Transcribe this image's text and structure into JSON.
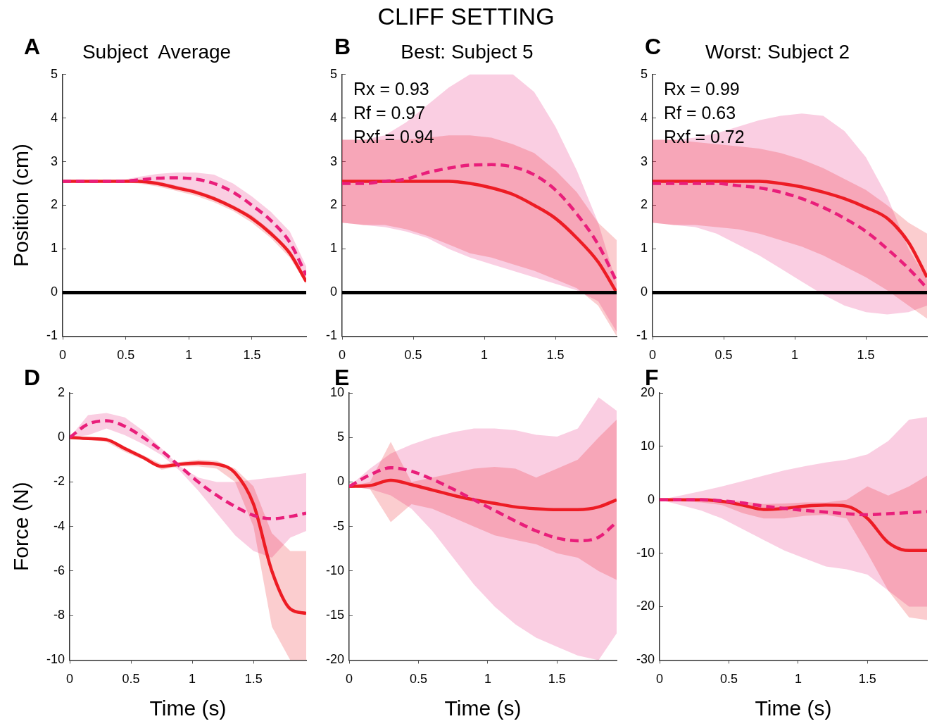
{
  "chart_data": [
    {
      "type": "line",
      "title": "Subject  Average",
      "ylabel": "Position (cm)",
      "annotations": [
        "A",
        "CLIFF SETTING"
      ],
      "marker": "none",
      "xlim": [
        0,
        1.93
      ],
      "xticks": [
        0,
        0.5,
        1,
        1.5
      ],
      "ylim": [
        -1,
        5
      ],
      "yticks": [
        -1,
        0,
        1,
        2,
        3,
        4,
        5
      ],
      "ref_lines": [
        {
          "axis": "y",
          "value": 0,
          "color": "#000000"
        }
      ],
      "x": [
        0,
        0.15,
        0.3,
        0.45,
        0.6,
        0.75,
        0.9,
        1.05,
        1.2,
        1.35,
        1.5,
        1.65,
        1.8,
        1.93
      ],
      "series": [
        {
          "color": "#ed1c24",
          "line_style": "solid",
          "values": [
            2.55,
            2.55,
            2.55,
            2.55,
            2.55,
            2.5,
            2.4,
            2.3,
            2.15,
            1.95,
            1.7,
            1.35,
            0.9,
            0.25
          ],
          "lower": [
            2.55,
            2.55,
            2.55,
            2.53,
            2.5,
            2.43,
            2.33,
            2.22,
            2.07,
            1.87,
            1.6,
            1.25,
            0.8,
            0.2
          ],
          "upper": [
            2.55,
            2.55,
            2.55,
            2.56,
            2.57,
            2.55,
            2.45,
            2.35,
            2.2,
            2.0,
            1.77,
            1.42,
            0.97,
            0.3
          ]
        },
        {
          "color": "#e91e7a",
          "line_style": "dashed",
          "values": [
            2.55,
            2.55,
            2.55,
            2.55,
            2.58,
            2.62,
            2.63,
            2.6,
            2.5,
            2.3,
            2.0,
            1.65,
            1.15,
            0.4
          ],
          "lower": [
            2.55,
            2.55,
            2.55,
            2.55,
            2.55,
            2.5,
            2.42,
            2.32,
            2.18,
            1.98,
            1.72,
            1.38,
            0.95,
            0.3
          ],
          "upper": [
            2.55,
            2.55,
            2.55,
            2.57,
            2.65,
            2.72,
            2.75,
            2.75,
            2.7,
            2.5,
            2.2,
            1.85,
            1.4,
            0.6
          ]
        }
      ]
    },
    {
      "type": "line",
      "title": "Best: Subject 5",
      "annotations": [
        "B",
        "Rx = 0.93",
        "Rf = 0.97",
        "Rxf = 0.94"
      ],
      "marker": "none",
      "xlim": [
        0,
        1.93
      ],
      "xticks": [
        0,
        0.5,
        1,
        1.5
      ],
      "ylim": [
        -1,
        5
      ],
      "yticks": [
        -1,
        0,
        1,
        2,
        3,
        4,
        5
      ],
      "ref_lines": [
        {
          "axis": "y",
          "value": 0,
          "color": "#000000"
        }
      ],
      "x": [
        0,
        0.15,
        0.3,
        0.45,
        0.6,
        0.75,
        0.9,
        1.05,
        1.2,
        1.35,
        1.5,
        1.65,
        1.8,
        1.93
      ],
      "series": [
        {
          "color": "#ed1c24",
          "line_style": "solid",
          "values": [
            2.55,
            2.55,
            2.55,
            2.55,
            2.55,
            2.55,
            2.5,
            2.4,
            2.25,
            2.0,
            1.7,
            1.25,
            0.7,
            0.0
          ],
          "lower": [
            1.6,
            1.55,
            1.55,
            1.45,
            1.3,
            1.1,
            0.9,
            0.8,
            0.65,
            0.5,
            0.3,
            0.1,
            -0.3,
            -1.0
          ],
          "upper": [
            3.5,
            3.5,
            3.5,
            3.5,
            3.55,
            3.6,
            3.6,
            3.55,
            3.4,
            3.2,
            2.8,
            2.3,
            1.6,
            1.2
          ]
        },
        {
          "color": "#e91e7a",
          "line_style": "dashed",
          "values": [
            2.5,
            2.5,
            2.55,
            2.6,
            2.75,
            2.85,
            2.92,
            2.93,
            2.88,
            2.7,
            2.35,
            1.8,
            1.1,
            0.25
          ],
          "lower": [
            1.6,
            1.55,
            1.5,
            1.4,
            1.25,
            1.0,
            0.8,
            0.65,
            0.5,
            0.35,
            0.2,
            0.05,
            -0.2,
            -0.9
          ],
          "upper": [
            3.5,
            3.5,
            3.6,
            3.9,
            4.3,
            4.7,
            5.0,
            5.0,
            5.0,
            4.6,
            3.8,
            2.8,
            1.6,
            0.2
          ]
        }
      ]
    },
    {
      "type": "line",
      "title": "Worst: Subject 2",
      "annotations": [
        "C",
        "Rx = 0.99",
        "Rf = 0.63",
        "Rxf = 0.72"
      ],
      "marker": "none",
      "xlim": [
        0,
        1.93
      ],
      "xticks": [
        0,
        0.5,
        1,
        1.5
      ],
      "ylim": [
        -1,
        5
      ],
      "yticks": [
        -1,
        0,
        1,
        2,
        3,
        4,
        5
      ],
      "ref_lines": [
        {
          "axis": "y",
          "value": 0,
          "color": "#000000"
        }
      ],
      "x": [
        0,
        0.15,
        0.3,
        0.45,
        0.6,
        0.75,
        0.9,
        1.05,
        1.2,
        1.35,
        1.5,
        1.65,
        1.8,
        1.93
      ],
      "series": [
        {
          "color": "#ed1c24",
          "line_style": "solid",
          "values": [
            2.55,
            2.55,
            2.55,
            2.55,
            2.55,
            2.55,
            2.5,
            2.42,
            2.3,
            2.15,
            1.95,
            1.7,
            1.15,
            0.35
          ],
          "lower": [
            1.6,
            1.55,
            1.55,
            1.5,
            1.45,
            1.35,
            1.2,
            1.05,
            0.85,
            0.6,
            0.35,
            0.05,
            -0.3,
            -0.6
          ],
          "upper": [
            3.5,
            3.5,
            3.45,
            3.4,
            3.35,
            3.3,
            3.2,
            3.05,
            2.85,
            2.6,
            2.35,
            2.0,
            1.6,
            1.35
          ]
        },
        {
          "color": "#e91e7a",
          "line_style": "dashed",
          "values": [
            2.5,
            2.5,
            2.5,
            2.5,
            2.45,
            2.4,
            2.3,
            2.15,
            1.95,
            1.7,
            1.4,
            1.0,
            0.55,
            0.1
          ],
          "lower": [
            1.6,
            1.55,
            1.5,
            1.35,
            1.1,
            0.85,
            0.55,
            0.25,
            -0.05,
            -0.3,
            -0.45,
            -0.5,
            -0.45,
            -0.3
          ],
          "upper": [
            3.5,
            3.5,
            3.55,
            3.65,
            3.8,
            3.95,
            4.05,
            4.1,
            4.05,
            3.7,
            3.1,
            2.2,
            1.0,
            0.3
          ]
        }
      ]
    },
    {
      "type": "line",
      "xlabel": "Time (s)",
      "ylabel": "Force (N)",
      "annotations": [
        "D"
      ],
      "marker": "none",
      "xlim": [
        0,
        1.93
      ],
      "xticks": [
        0,
        0.5,
        1,
        1.5
      ],
      "ylim": [
        -10,
        2
      ],
      "yticks": [
        -10,
        -8,
        -6,
        -4,
        -2,
        0,
        2
      ],
      "x": [
        0,
        0.15,
        0.3,
        0.45,
        0.6,
        0.75,
        0.9,
        1.05,
        1.2,
        1.35,
        1.5,
        1.65,
        1.8,
        1.93
      ],
      "series": [
        {
          "color": "#ed1c24",
          "line_style": "solid",
          "values": [
            0,
            -0.05,
            -0.1,
            -0.5,
            -0.9,
            -1.3,
            -1.2,
            -1.15,
            -1.2,
            -1.6,
            -3.0,
            -6.0,
            -7.7,
            -7.9
          ],
          "lower": [
            0,
            -0.1,
            -0.2,
            -0.65,
            -1.0,
            -1.45,
            -1.3,
            -1.3,
            -1.4,
            -2.0,
            -4.0,
            -8.5,
            -10,
            -10
          ],
          "upper": [
            0,
            0,
            0,
            -0.4,
            -0.8,
            -1.2,
            -1.1,
            -1.0,
            -1.05,
            -1.4,
            -2.2,
            -4.3,
            -5.1,
            -5.1
          ]
        },
        {
          "color": "#e91e7a",
          "line_style": "dashed",
          "values": [
            0,
            0.6,
            0.75,
            0.5,
            0.0,
            -0.6,
            -1.3,
            -2.0,
            -2.6,
            -3.1,
            -3.5,
            -3.65,
            -3.55,
            -3.4
          ],
          "lower": [
            0,
            0.1,
            0.4,
            0.1,
            -0.3,
            -0.8,
            -1.5,
            -2.4,
            -3.4,
            -4.4,
            -5.1,
            -5.4,
            -4.5,
            -4.2
          ],
          "upper": [
            0,
            1.0,
            1.1,
            0.9,
            0.3,
            -0.5,
            -1.3,
            -1.8,
            -2.0,
            -2.0,
            -1.9,
            -1.8,
            -1.7,
            -1.6
          ]
        }
      ]
    },
    {
      "type": "line",
      "xlabel": "Time (s)",
      "annotations": [
        "E"
      ],
      "marker": "none",
      "xlim": [
        0,
        1.93
      ],
      "xticks": [
        0,
        0.5,
        1,
        1.5
      ],
      "ylim": [
        -20,
        10
      ],
      "yticks": [
        -20,
        -15,
        -10,
        -5,
        0,
        5,
        10
      ],
      "x": [
        0,
        0.15,
        0.3,
        0.45,
        0.6,
        0.75,
        0.9,
        1.05,
        1.2,
        1.35,
        1.5,
        1.65,
        1.8,
        1.93
      ],
      "series": [
        {
          "color": "#ed1c24",
          "line_style": "solid",
          "values": [
            -0.5,
            -0.4,
            0.2,
            -0.3,
            -0.9,
            -1.5,
            -2.0,
            -2.4,
            -2.8,
            -3.0,
            -3.1,
            -3.1,
            -2.8,
            -2.0
          ],
          "lower": [
            -0.5,
            -0.8,
            -4.5,
            -2.5,
            -3.0,
            -4.0,
            -5.0,
            -6.0,
            -6.5,
            -7.0,
            -8.0,
            -8.5,
            -10.0,
            -11.0
          ],
          "upper": [
            -0.5,
            0,
            4.5,
            0,
            0.5,
            1.0,
            1.5,
            1.7,
            1.5,
            0.5,
            1.5,
            2.5,
            5.0,
            7.0
          ]
        },
        {
          "color": "#e91e7a",
          "line_style": "dashed",
          "values": [
            -0.5,
            0.8,
            1.6,
            1.2,
            0.3,
            -0.8,
            -2.0,
            -3.2,
            -4.4,
            -5.5,
            -6.3,
            -6.6,
            -6.2,
            -4.5
          ],
          "lower": [
            -0.5,
            -0.8,
            -1.5,
            -3.0,
            -5.5,
            -8.5,
            -11.5,
            -14,
            -16,
            -17.5,
            -18.5,
            -19.5,
            -20,
            -17
          ],
          "upper": [
            -0.5,
            1.5,
            3.2,
            4.2,
            5.0,
            5.6,
            6.0,
            6.0,
            5.8,
            5.3,
            5.1,
            6.0,
            9.5,
            8.0
          ]
        }
      ]
    },
    {
      "type": "line",
      "xlabel": "Time (s)",
      "annotations": [
        "F"
      ],
      "marker": "none",
      "xlim": [
        0,
        1.93
      ],
      "xticks": [
        0,
        0.5,
        1,
        1.5
      ],
      "ylim": [
        -30,
        20
      ],
      "yticks": [
        -30,
        -20,
        -10,
        0,
        10,
        20
      ],
      "x": [
        0,
        0.15,
        0.3,
        0.45,
        0.6,
        0.75,
        0.9,
        1.05,
        1.2,
        1.35,
        1.5,
        1.65,
        1.8,
        1.93
      ],
      "series": [
        {
          "color": "#ed1c24",
          "line_style": "solid",
          "values": [
            0,
            0,
            0,
            -0.3,
            -1.0,
            -1.8,
            -1.6,
            -1.2,
            -1.0,
            -1.2,
            -3.5,
            -8.0,
            -9.5,
            -9.5
          ],
          "lower": [
            0,
            -0.3,
            -0.5,
            -1.0,
            -2.5,
            -3.5,
            -3.5,
            -3.0,
            -2.8,
            -3.5,
            -10,
            -17,
            -22,
            -22.5
          ],
          "upper": [
            0,
            0.2,
            0.2,
            0,
            -0.3,
            -0.8,
            -0.7,
            -0.5,
            -0.5,
            0,
            2.5,
            0.8,
            2.5,
            4.5
          ]
        },
        {
          "color": "#e91e7a",
          "line_style": "dashed",
          "values": [
            0,
            0,
            0,
            -0.2,
            -0.6,
            -1.2,
            -1.6,
            -2.0,
            -2.3,
            -2.6,
            -2.8,
            -2.6,
            -2.4,
            -2.2
          ],
          "lower": [
            0,
            -1.0,
            -2.0,
            -3.5,
            -5.5,
            -7.5,
            -9.5,
            -11,
            -12.5,
            -13,
            -14,
            -17,
            -20,
            -20
          ],
          "upper": [
            0,
            0.8,
            1.6,
            2.5,
            3.5,
            4.5,
            5.5,
            6.3,
            7.0,
            7.5,
            8.5,
            11,
            15,
            15.5
          ]
        }
      ]
    }
  ]
}
